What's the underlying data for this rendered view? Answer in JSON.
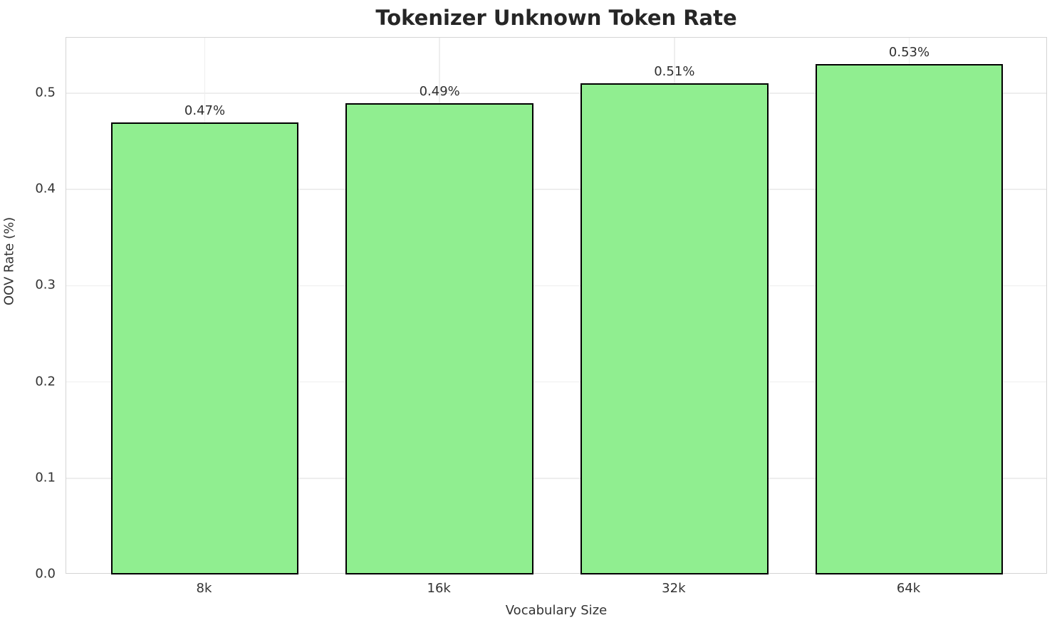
{
  "chart_data": {
    "type": "bar",
    "title": "Tokenizer Unknown Token Rate",
    "xlabel": "Vocabulary Size",
    "ylabel": "OOV Rate (%)",
    "categories": [
      "8k",
      "16k",
      "32k",
      "64k"
    ],
    "values": [
      0.47,
      0.49,
      0.51,
      0.53
    ],
    "bar_labels": [
      "0.47%",
      "0.49%",
      "0.51%",
      "0.53%"
    ],
    "y_tick_values": [
      0.0,
      0.1,
      0.2,
      0.3,
      0.4,
      0.5
    ],
    "y_tick_labels": [
      "0.0",
      "0.1",
      "0.2",
      "0.3",
      "0.4",
      "0.5"
    ],
    "ylim": [
      0,
      0.5577
    ],
    "grid": true,
    "legend": "none",
    "bar_color": "#90EE90",
    "bar_edge_color": "#000000",
    "grid_color": "#eeeeee",
    "spine_color": "#d4d4d4",
    "tick_text_color": "#333333",
    "title_color": "#262626"
  }
}
